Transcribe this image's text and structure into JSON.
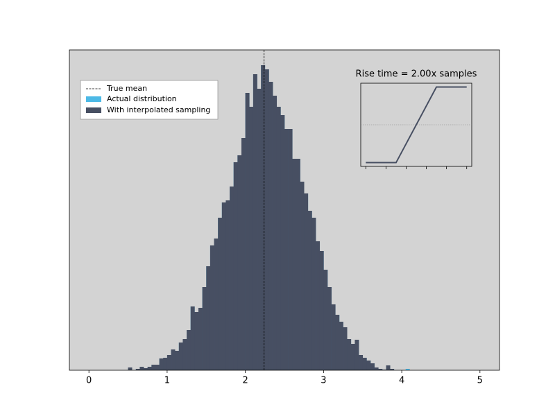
{
  "chart_data": {
    "type": "histogram",
    "bins": [
      0.5,
      0.55,
      0.6,
      0.65,
      0.7,
      0.75,
      0.8,
      0.85,
      0.9,
      0.95,
      1.0,
      1.05,
      1.1,
      1.15,
      1.2,
      1.25,
      1.3,
      1.35,
      1.4,
      1.45,
      1.5,
      1.55,
      1.6,
      1.65,
      1.7,
      1.75,
      1.8,
      1.85,
      1.9,
      1.95,
      2.0,
      2.05,
      2.1,
      2.15,
      2.2,
      2.25,
      2.3,
      2.35,
      2.4,
      2.45,
      2.5,
      2.55,
      2.6,
      2.65,
      2.7,
      2.75,
      2.8,
      2.85,
      2.9,
      2.95,
      3.0,
      3.05,
      3.1,
      3.15,
      3.2,
      3.25,
      3.3,
      3.35,
      3.4,
      3.45,
      3.5,
      3.55,
      3.6,
      3.65,
      3.7,
      3.75,
      3.8,
      3.85,
      3.9,
      3.95,
      4.0,
      4.05,
      4.1
    ],
    "series": [
      {
        "name": "Actual distribution",
        "color": "#4cb9e6",
        "values": [
          4,
          0,
          2,
          5,
          3,
          5,
          8,
          8,
          17,
          18,
          22,
          30,
          28,
          40,
          45,
          58,
          92,
          84,
          90,
          120,
          150,
          180,
          190,
          220,
          242,
          245,
          265,
          300,
          310,
          335,
          400,
          380,
          427,
          406,
          440,
          434,
          416,
          396,
          380,
          368,
          348,
          348,
          305,
          305,
          272,
          255,
          230,
          220,
          186,
          172,
          145,
          120,
          95,
          80,
          70,
          62,
          45,
          38,
          44,
          22,
          18,
          14,
          10,
          4,
          2,
          1,
          7,
          2,
          0,
          0,
          0,
          2
        ]
      },
      {
        "name": "With interpolated sampling",
        "color": "#474f62",
        "values": [
          4,
          0,
          2,
          5,
          3,
          5,
          8,
          8,
          17,
          18,
          22,
          30,
          28,
          40,
          45,
          58,
          92,
          84,
          90,
          120,
          150,
          180,
          190,
          220,
          242,
          245,
          265,
          300,
          310,
          335,
          400,
          380,
          427,
          406,
          440,
          434,
          416,
          396,
          380,
          368,
          348,
          348,
          305,
          305,
          272,
          255,
          230,
          220,
          186,
          172,
          145,
          120,
          95,
          80,
          70,
          62,
          45,
          38,
          44,
          22,
          18,
          14,
          10,
          4,
          2,
          1,
          7,
          2,
          0,
          0,
          0,
          0
        ]
      }
    ],
    "true_mean": {
      "name": "True mean",
      "value": 2.24
    },
    "xlim": [
      -0.25,
      5.25
    ],
    "xticks": [
      0,
      1,
      2,
      3,
      4,
      5
    ],
    "ylim": [
      0,
      462
    ],
    "legend": "upper left",
    "background": "#d3d3d3",
    "inset": {
      "type": "line",
      "title": "Rise time = 2.00x samples",
      "x": [
        0,
        1.5,
        3.5,
        5
      ],
      "values": [
        0,
        0,
        1,
        1
      ],
      "color": "#474f62",
      "xlim": [
        -0.25,
        5.25
      ],
      "xticks": [
        0,
        1,
        2,
        3,
        4,
        5
      ],
      "ylim": [
        -0.05,
        1.05
      ],
      "reference": 0.5
    }
  }
}
